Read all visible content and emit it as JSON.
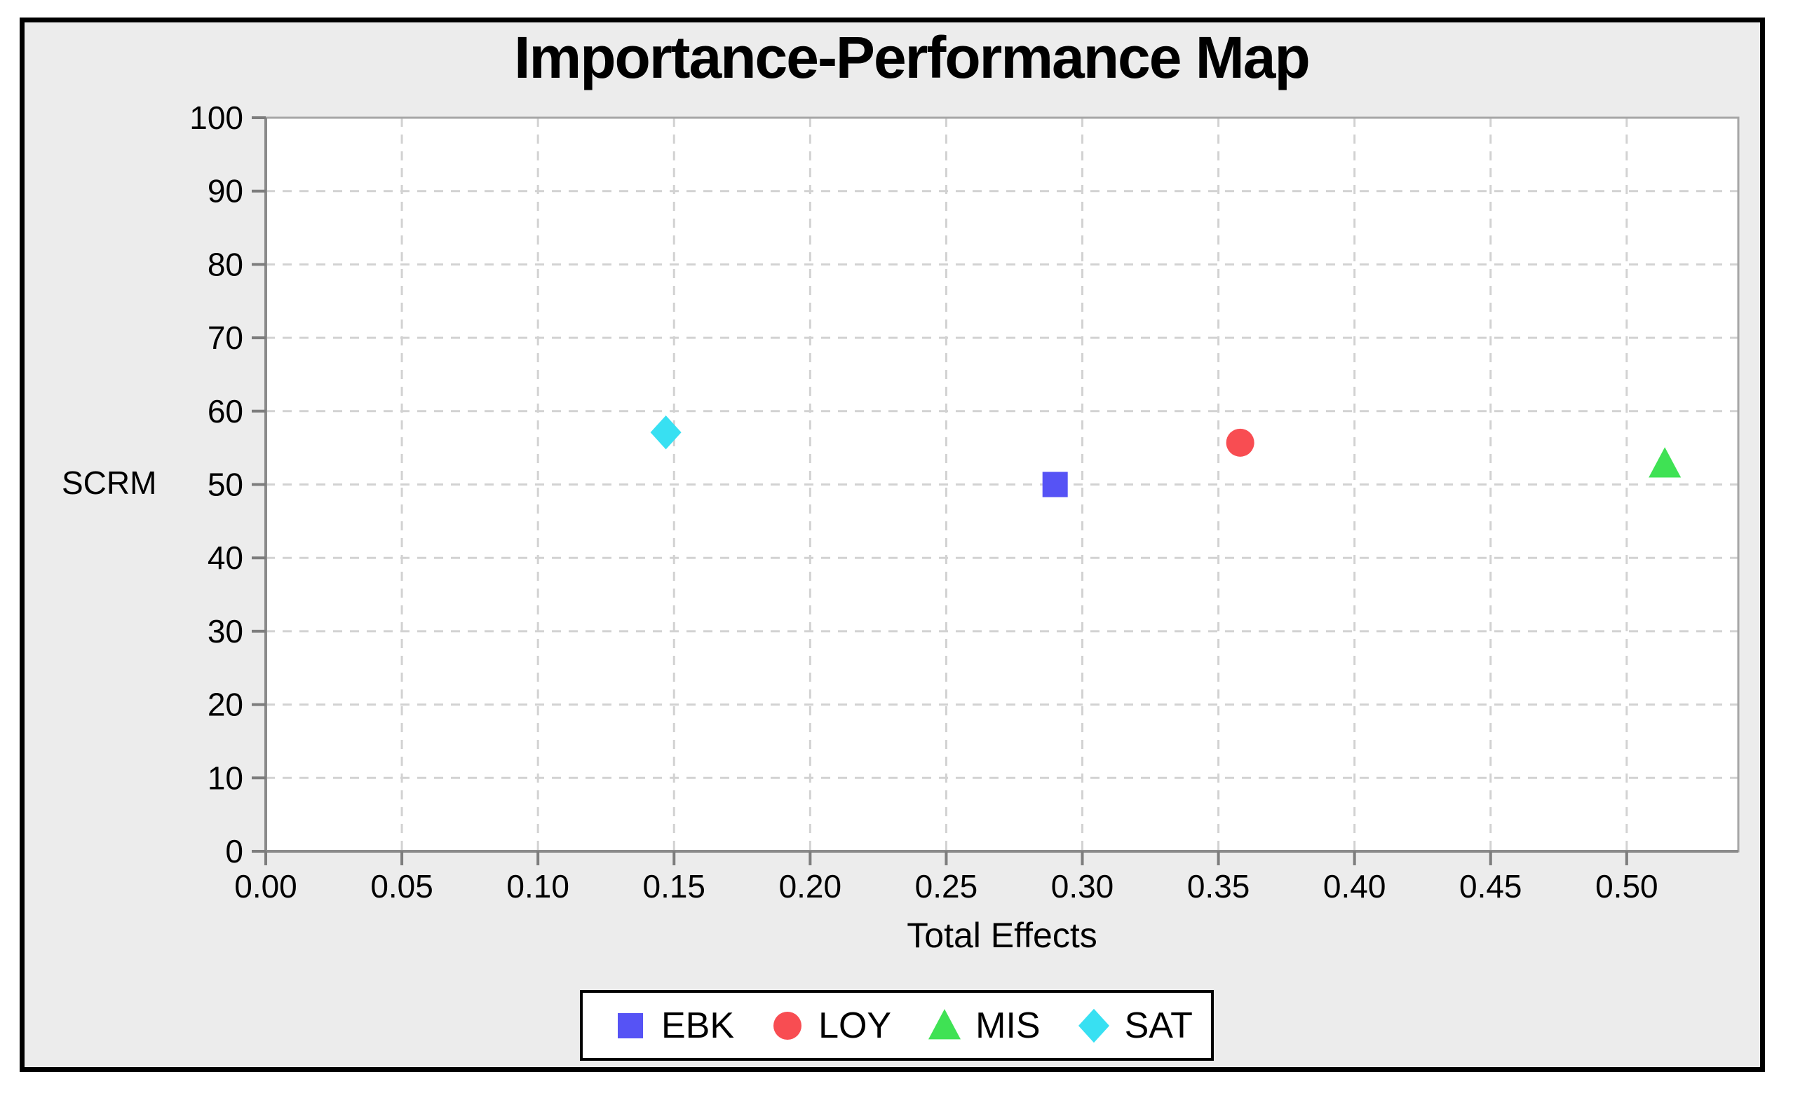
{
  "chart_data": {
    "type": "scatter",
    "title": "Importance-Performance Map",
    "xlabel": "Total Effects",
    "ylabel": "SCRM",
    "xlim": [
      0,
      0.541
    ],
    "ylim": [
      0,
      100
    ],
    "grid": true,
    "legend_position": "bottom",
    "x_ticks": [
      "0.00",
      "0.05",
      "0.10",
      "0.15",
      "0.20",
      "0.25",
      "0.30",
      "0.35",
      "0.40",
      "0.45",
      "0.50"
    ],
    "x_tick_values": [
      0,
      0.05,
      0.1,
      0.15,
      0.2,
      0.25,
      0.3,
      0.35,
      0.4,
      0.45,
      0.5
    ],
    "y_ticks": [
      "0",
      "10",
      "20",
      "30",
      "40",
      "50",
      "60",
      "70",
      "80",
      "90",
      "100"
    ],
    "y_tick_values": [
      0,
      10,
      20,
      30,
      40,
      50,
      60,
      70,
      80,
      90,
      100
    ],
    "series": [
      {
        "name": "EBK",
        "marker": "square",
        "color": "#5653F5",
        "points": [
          {
            "x": 0.29,
            "y": 50.0
          }
        ]
      },
      {
        "name": "LOY",
        "marker": "circle",
        "color": "#F84D52",
        "points": [
          {
            "x": 0.358,
            "y": 55.7
          }
        ]
      },
      {
        "name": "MIS",
        "marker": "triangle",
        "color": "#3FE254",
        "points": [
          {
            "x": 0.514,
            "y": 52.8
          }
        ]
      },
      {
        "name": "SAT",
        "marker": "diamond",
        "color": "#38E0F2",
        "points": [
          {
            "x": 0.147,
            "y": 57.1
          }
        ]
      }
    ],
    "colors": {
      "frame_background": "#ECECEC",
      "plot_background": "#FFFFFF",
      "gridline": "#D2D2D2",
      "axis": "#8A8A8A",
      "tick": "#7D7D7D",
      "plot_border": "#A6A6A6"
    }
  }
}
